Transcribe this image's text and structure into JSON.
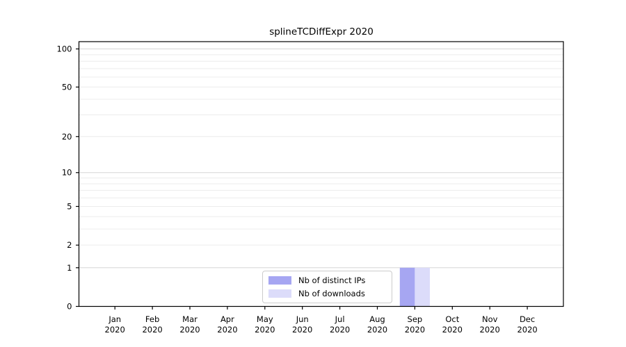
{
  "title": "splineTCDiffExpr 2020",
  "chart_data": {
    "type": "bar",
    "title": "splineTCDiffExpr 2020",
    "xlabel": "",
    "ylabel": "",
    "categories": [
      "Jan 2020",
      "Feb 2020",
      "Mar 2020",
      "Apr 2020",
      "May 2020",
      "Jun 2020",
      "Jul 2020",
      "Aug 2020",
      "Sep 2020",
      "Oct 2020",
      "Nov 2020",
      "Dec 2020"
    ],
    "series": [
      {
        "name": "Nb of distinct IPs",
        "color": "#a6a6f2",
        "values": [
          0,
          0,
          0,
          0,
          0,
          0,
          0,
          0,
          1,
          0,
          0,
          0
        ]
      },
      {
        "name": "Nb of downloads",
        "color": "#dcdcfa",
        "values": [
          0,
          0,
          0,
          0,
          0,
          0,
          0,
          0,
          1,
          0,
          0,
          0
        ]
      }
    ],
    "yscale": "log1p",
    "ylim": [
      0,
      113
    ],
    "ytick_values": [
      0,
      1,
      2,
      5,
      10,
      20,
      50,
      100
    ],
    "ytick_labels": [
      "0",
      "1",
      "2",
      "5",
      "10",
      "20",
      "50",
      "100"
    ],
    "grid": {
      "orientation": "horizontal",
      "minor_values": [
        2,
        3,
        4,
        5,
        6,
        7,
        8,
        9,
        20,
        30,
        40,
        50,
        60,
        70,
        80,
        90
      ],
      "major_values": [
        1,
        10,
        100
      ],
      "minor_color": "#ececec",
      "major_color": "#d6d6d6"
    },
    "legend": {
      "position": "lower-center-inside",
      "entries": [
        "Nb of distinct IPs",
        "Nb of downloads"
      ]
    }
  }
}
